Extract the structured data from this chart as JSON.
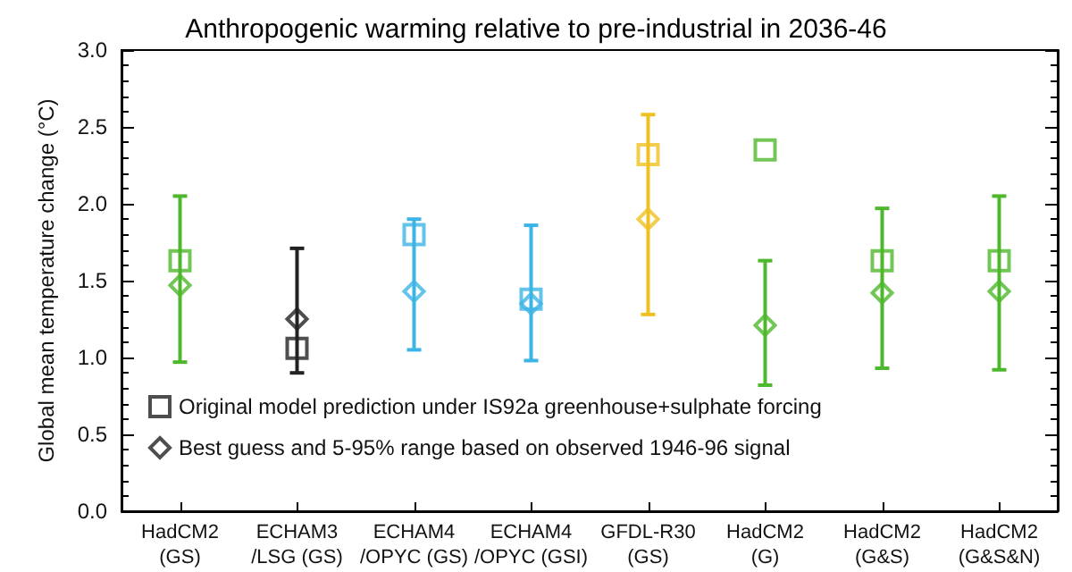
{
  "chart_data": {
    "type": "scatter",
    "title": "Anthropogenic warming relative to pre-industrial in 2036-46",
    "ylabel": "Global mean temperature change (°C)",
    "categories": [
      "HadCM2\n(GS)",
      "ECHAM3\n/LSG (GS)",
      "ECHAM4\n/OPYC (GS)",
      "ECHAM4\n/OPYC (GSI)",
      "GFDL-R30\n(GS)",
      "HadCM2\n(G)",
      "HadCM2\n(G&S)",
      "HadCM2\n(G&S&N)"
    ],
    "series": [
      {
        "name": "Original model prediction under IS92a greenhouse+sulphate forcing",
        "marker": "square",
        "color": "#222222",
        "colors": [
          "#4db82b",
          "#222222",
          "#3cb4e6",
          "#3cb4e6",
          "#f0c020",
          "#4db82b",
          "#4db82b",
          "#4db82b"
        ],
        "values": [
          1.63,
          1.06,
          1.8,
          1.38,
          2.32,
          2.35,
          1.63,
          1.63
        ]
      },
      {
        "name": "Best guess and 5-95% range based on observed 1946-96 signal",
        "marker": "diamond",
        "color": "#222222",
        "colors": [
          "#4db82b",
          "#222222",
          "#3cb4e6",
          "#3cb4e6",
          "#f0c020",
          "#4db82b",
          "#4db82b",
          "#4db82b"
        ],
        "values": [
          1.47,
          1.25,
          1.43,
          1.35,
          1.9,
          1.21,
          1.42,
          1.43
        ],
        "errors": [
          [
            0.97,
            2.05
          ],
          [
            0.9,
            1.71
          ],
          [
            1.05,
            1.9
          ],
          [
            0.98,
            1.86
          ],
          [
            1.28,
            2.58
          ],
          [
            0.82,
            1.63
          ],
          [
            0.93,
            1.97
          ],
          [
            0.92,
            2.05
          ]
        ]
      }
    ],
    "ylim": [
      0,
      3
    ],
    "yticks": [
      {
        "value": 0,
        "label": "0.0"
      },
      {
        "value": 0.5,
        "label": "0.5"
      },
      {
        "value": 1,
        "label": "1.0"
      },
      {
        "value": 1.5,
        "label": "1.5"
      },
      {
        "value": 2,
        "label": "2.0"
      },
      {
        "value": 2.5,
        "label": "2.5"
      },
      {
        "value": 3,
        "label": "3.0"
      }
    ],
    "grid": false,
    "legend": "bottom left"
  }
}
